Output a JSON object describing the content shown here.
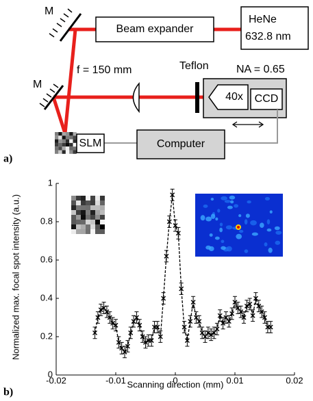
{
  "diagram": {
    "mirror_top": "M",
    "mirror_bottom": "M",
    "beam_expander": "Beam expander",
    "laser": [
      "HeNe",
      "632.8 nm"
    ],
    "focal_length": "f = 150 mm",
    "teflon": "Teflon",
    "na": "NA = 0.65",
    "objective": "40x",
    "camera": "CCD",
    "slm": "SLM",
    "computer": "Computer",
    "panel": "a)"
  },
  "chart_data": {
    "type": "errorbar",
    "panel": "b)",
    "xlabel": "Scanning direction (mm)",
    "ylabel": "Normalized max. focal spot intensity (a.u.)",
    "x": [
      -0.0135,
      -0.013,
      -0.0125,
      -0.012,
      -0.0115,
      -0.011,
      -0.0105,
      -0.01,
      -0.0095,
      -0.009,
      -0.0085,
      -0.008,
      -0.0075,
      -0.007,
      -0.0065,
      -0.006,
      -0.0055,
      -0.005,
      -0.0045,
      -0.004,
      -0.0035,
      -0.003,
      -0.0025,
      -0.002,
      -0.0015,
      -0.001,
      -0.0005,
      0,
      0.0005,
      0.001,
      0.0015,
      0.002,
      0.0025,
      0.003,
      0.0035,
      0.004,
      0.0045,
      0.005,
      0.0055,
      0.006,
      0.0065,
      0.007,
      0.0075,
      0.008,
      0.0085,
      0.009,
      0.0095,
      0.01,
      0.0105,
      0.011,
      0.0115,
      0.012,
      0.0125,
      0.013,
      0.0135,
      0.014,
      0.0145,
      0.015,
      0.0155,
      0.016
    ],
    "values": [
      0.22,
      0.3,
      0.34,
      0.35,
      0.33,
      0.3,
      0.27,
      0.26,
      0.17,
      0.14,
      0.12,
      0.15,
      0.22,
      0.28,
      0.3,
      0.26,
      0.2,
      0.17,
      0.18,
      0.18,
      0.25,
      0.25,
      0.2,
      0.4,
      0.62,
      0.8,
      0.94,
      0.78,
      0.74,
      0.45,
      0.25,
      0.18,
      0.28,
      0.38,
      0.3,
      0.28,
      0.22,
      0.2,
      0.22,
      0.21,
      0.22,
      0.24,
      0.31,
      0.27,
      0.3,
      0.28,
      0.32,
      0.38,
      0.35,
      0.33,
      0.3,
      0.36,
      0.37,
      0.31,
      0.4,
      0.36,
      0.33,
      0.3,
      0.25,
      0.25
    ],
    "errors": [
      0.03,
      0.03,
      0.03,
      0.03,
      0.03,
      0.03,
      0.03,
      0.03,
      0.03,
      0.03,
      0.03,
      0.03,
      0.03,
      0.03,
      0.03,
      0.03,
      0.03,
      0.03,
      0.03,
      0.03,
      0.03,
      0.03,
      0.03,
      0.03,
      0.03,
      0.03,
      0.03,
      0.03,
      0.03,
      0.03,
      0.03,
      0.03,
      0.03,
      0.03,
      0.03,
      0.03,
      0.03,
      0.03,
      0.03,
      0.03,
      0.03,
      0.03,
      0.03,
      0.03,
      0.03,
      0.03,
      0.03,
      0.03,
      0.03,
      0.03,
      0.03,
      0.03,
      0.03,
      0.03,
      0.03,
      0.03,
      0.03,
      0.03,
      0.03,
      0.03
    ],
    "color": "#000000",
    "xlim": [
      -0.02,
      0.02
    ],
    "xticks": [
      -0.02,
      -0.01,
      0,
      0.01,
      0.02
    ],
    "ylim": [
      0,
      1
    ],
    "yticks": [
      0,
      0.2,
      0.4,
      0.6,
      0.8,
      1
    ]
  }
}
